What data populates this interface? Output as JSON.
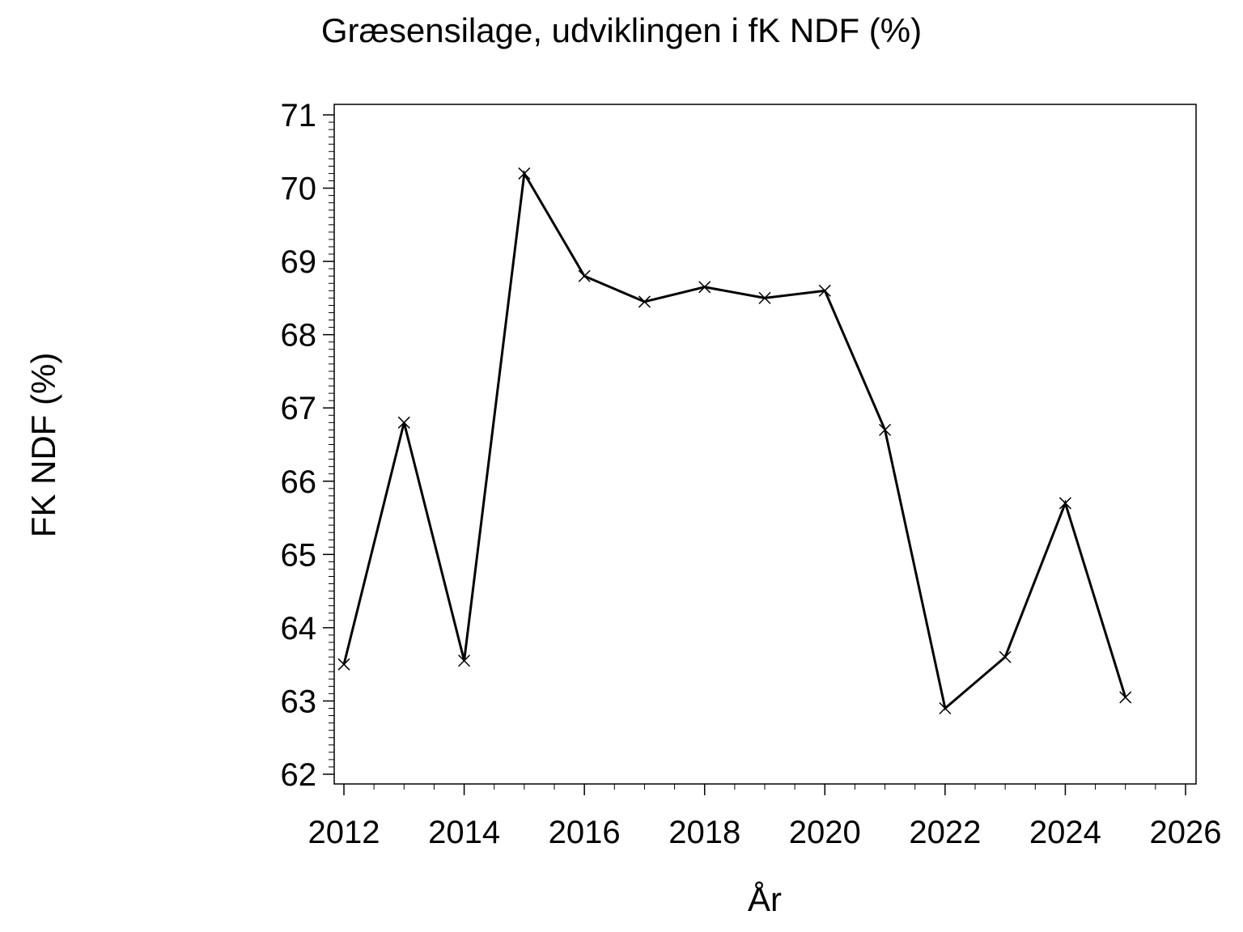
{
  "chart_data": {
    "type": "line",
    "title": "Græsensilage,  udviklingen  i  fK  NDF  (%)",
    "xlabel": "År",
    "ylabel": "FK  NDF  (%)",
    "x": [
      2012,
      2013,
      2014,
      2015,
      2016,
      2017,
      2018,
      2019,
      2020,
      2021,
      2022,
      2023,
      2024,
      2025
    ],
    "series": [
      {
        "values": [
          63.5,
          66.8,
          63.55,
          70.2,
          68.8,
          68.45,
          68.65,
          68.5,
          68.6,
          66.7,
          62.9,
          63.6,
          65.7,
          63.05
        ],
        "color": "#000000",
        "marker": "x"
      }
    ],
    "xlim": [
      2012,
      2026
    ],
    "ylim": [
      62,
      71
    ],
    "xticks": [
      "2012",
      "2014",
      "2016",
      "2018",
      "2020",
      "2022",
      "2024",
      "2026"
    ],
    "yticks": [
      "62",
      "63",
      "64",
      "65",
      "66",
      "67",
      "68",
      "69",
      "70",
      "71"
    ],
    "grid": false
  }
}
